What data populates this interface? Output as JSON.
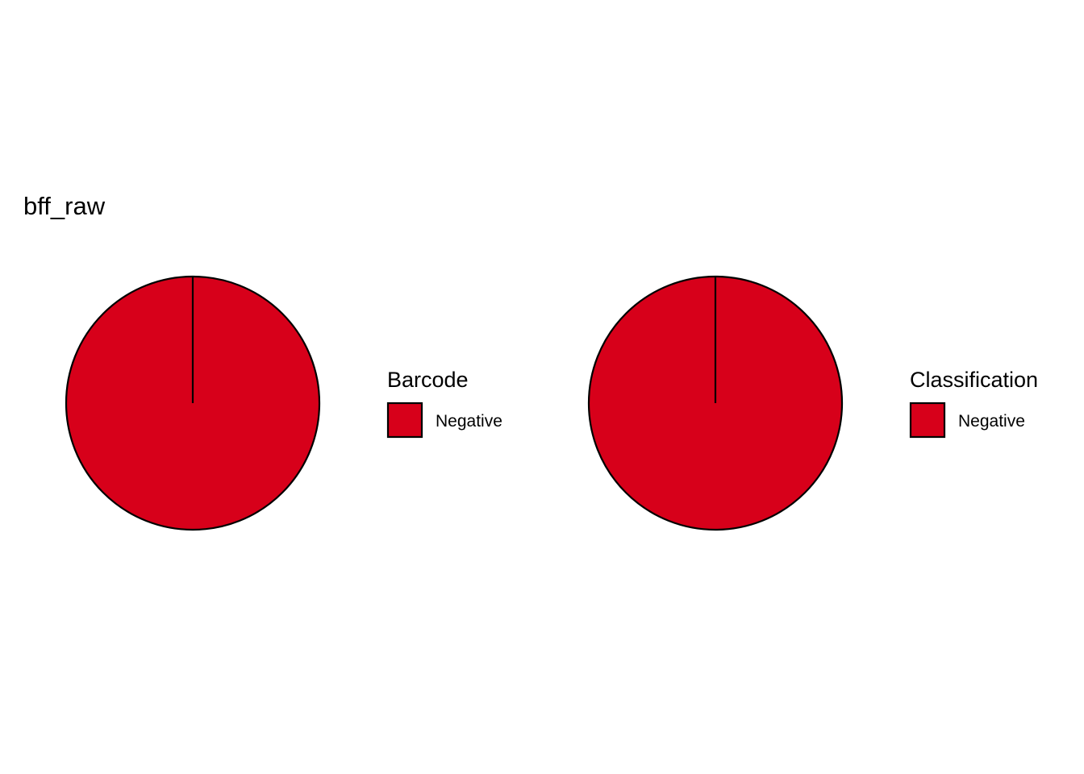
{
  "page_title": "bff_raw",
  "chart_data": [
    {
      "type": "pie",
      "title": "",
      "legend_title": "Barcode",
      "legend_position": "right",
      "categories": [
        "Negative"
      ],
      "values": [
        1
      ],
      "colors": [
        "#d7001a"
      ],
      "stroke_color": "#000000"
    },
    {
      "type": "pie",
      "title": "",
      "legend_title": "Classification",
      "legend_position": "right",
      "categories": [
        "Negative"
      ],
      "values": [
        1
      ],
      "colors": [
        "#d7001a"
      ],
      "stroke_color": "#000000"
    }
  ]
}
